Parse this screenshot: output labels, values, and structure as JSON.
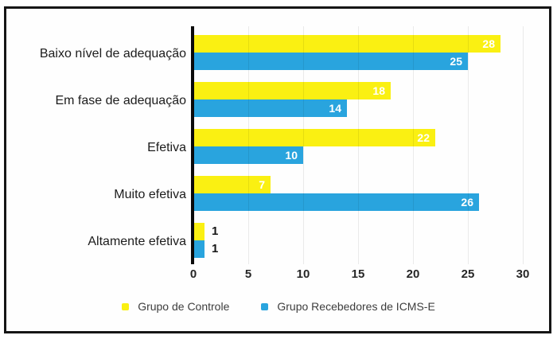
{
  "chart_data": {
    "type": "bar",
    "orientation": "horizontal",
    "title": "",
    "xlabel": "",
    "ylabel": "",
    "categories": [
      "Baixo nível de adequação",
      "Em fase de adequação",
      "Efetiva",
      "Muito efetiva",
      "Altamente efetiva"
    ],
    "series": [
      {
        "name": "Grupo de Controle",
        "color": "#FAF012",
        "values": [
          28,
          18,
          22,
          7,
          1
        ]
      },
      {
        "name": "Grupo Recebedores de ICMS-E",
        "color": "#29A4DE",
        "values": [
          25,
          14,
          10,
          26,
          1
        ]
      }
    ],
    "xlim": [
      0,
      30
    ],
    "x_ticks": [
      0,
      5,
      10,
      15,
      20,
      25,
      30
    ],
    "value_labels": "on-bar",
    "grid": "subtle-vertical-over-bars",
    "legend_position": "bottom"
  },
  "colors": {
    "frame_border": "#151515",
    "axis": "#0a0a0a",
    "background": "#ffffff",
    "bar_value_text_inside": "#ffffff",
    "bar_value_text_outside": "#161616",
    "category_text": "#1c1c1c",
    "tick_text": "#262626",
    "legend_text": "#3d3d3d"
  }
}
